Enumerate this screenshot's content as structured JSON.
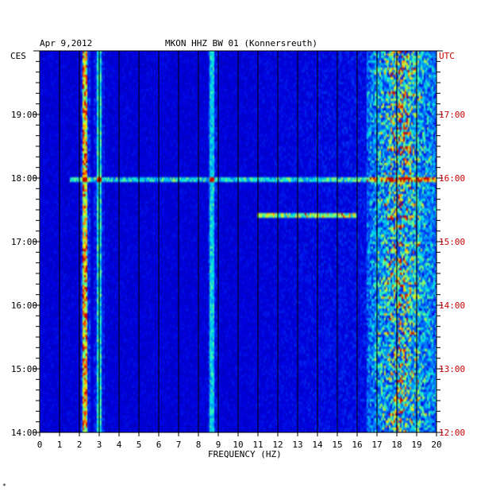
{
  "header": {
    "date": "Apr 9,2012",
    "station": "MKON HHZ BW 01 (Konnersreuth)"
  },
  "footer": {
    "mark": "*"
  },
  "colors": {
    "background": "#0000b4",
    "left_axis": "#000000",
    "right_axis": "#cc0000"
  },
  "chart_data": {
    "type": "heatmap",
    "title": "MKON HHZ BW 01 (Konnersreuth)",
    "date": "Apr 9,2012",
    "xlabel": "FREQUENCY (HZ)",
    "xlim": [
      0,
      20
    ],
    "x_ticks": [
      "0",
      "1",
      "2",
      "3",
      "4",
      "5",
      "6",
      "7",
      "8",
      "9",
      "10",
      "11",
      "12",
      "13",
      "14",
      "15",
      "16",
      "17",
      "18",
      "19",
      "20"
    ],
    "left_axis_label": "CES",
    "left_ticks": [
      {
        "label": "19:00",
        "hour": 19
      },
      {
        "label": "18:00",
        "hour": 18
      },
      {
        "label": "17:00",
        "hour": 17
      },
      {
        "label": "16:00",
        "hour": 16
      },
      {
        "label": "15:00",
        "hour": 15
      },
      {
        "label": "14:00",
        "hour": 14
      }
    ],
    "right_axis_label": "UTC",
    "right_ticks": [
      {
        "label": "17:00",
        "hour": 17
      },
      {
        "label": "16:00",
        "hour": 16
      },
      {
        "label": "15:00",
        "hour": 15
      },
      {
        "label": "14:00",
        "hour": 14
      },
      {
        "label": "13:00",
        "hour": 13
      },
      {
        "label": "12:00",
        "hour": 12
      }
    ],
    "time_range_ces": [
      14.0,
      20.0
    ],
    "features": [
      {
        "kind": "vertical_line",
        "freq": 2.3,
        "intensity": 0.85
      },
      {
        "kind": "vertical_line",
        "freq": 3.0,
        "intensity": 0.55
      },
      {
        "kind": "vertical_line",
        "freq": 8.7,
        "intensity": 0.5
      },
      {
        "kind": "broadband_noise",
        "freq_range": [
          16.5,
          20.0
        ],
        "intensity": 0.8
      },
      {
        "kind": "horizontal_band",
        "time_ces": 17.97,
        "freq_range": [
          1.5,
          20.0
        ],
        "intensity": 0.55
      },
      {
        "kind": "horizontal_band",
        "time_ces": 17.42,
        "freq_range": [
          11.0,
          16.0
        ],
        "intensity": 0.7
      }
    ]
  }
}
